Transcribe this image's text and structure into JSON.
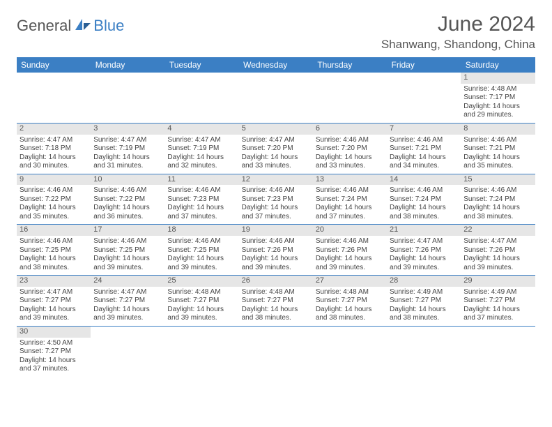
{
  "logo": {
    "part1": "General",
    "part2": "Blue"
  },
  "title": "June 2024",
  "location": "Shanwang, Shandong, China",
  "colors": {
    "header_bg": "#3b7fc4",
    "header_text": "#ffffff",
    "daynum_bg": "#e6e6e6",
    "text": "#444444",
    "title_color": "#555555"
  },
  "weekdays": [
    "Sunday",
    "Monday",
    "Tuesday",
    "Wednesday",
    "Thursday",
    "Friday",
    "Saturday"
  ],
  "weeks": [
    [
      null,
      null,
      null,
      null,
      null,
      null,
      {
        "n": "1",
        "sr": "Sunrise: 4:48 AM",
        "ss": "Sunset: 7:17 PM",
        "dl": "Daylight: 14 hours and 29 minutes."
      }
    ],
    [
      {
        "n": "2",
        "sr": "Sunrise: 4:47 AM",
        "ss": "Sunset: 7:18 PM",
        "dl": "Daylight: 14 hours and 30 minutes."
      },
      {
        "n": "3",
        "sr": "Sunrise: 4:47 AM",
        "ss": "Sunset: 7:19 PM",
        "dl": "Daylight: 14 hours and 31 minutes."
      },
      {
        "n": "4",
        "sr": "Sunrise: 4:47 AM",
        "ss": "Sunset: 7:19 PM",
        "dl": "Daylight: 14 hours and 32 minutes."
      },
      {
        "n": "5",
        "sr": "Sunrise: 4:47 AM",
        "ss": "Sunset: 7:20 PM",
        "dl": "Daylight: 14 hours and 33 minutes."
      },
      {
        "n": "6",
        "sr": "Sunrise: 4:46 AM",
        "ss": "Sunset: 7:20 PM",
        "dl": "Daylight: 14 hours and 33 minutes."
      },
      {
        "n": "7",
        "sr": "Sunrise: 4:46 AM",
        "ss": "Sunset: 7:21 PM",
        "dl": "Daylight: 14 hours and 34 minutes."
      },
      {
        "n": "8",
        "sr": "Sunrise: 4:46 AM",
        "ss": "Sunset: 7:21 PM",
        "dl": "Daylight: 14 hours and 35 minutes."
      }
    ],
    [
      {
        "n": "9",
        "sr": "Sunrise: 4:46 AM",
        "ss": "Sunset: 7:22 PM",
        "dl": "Daylight: 14 hours and 35 minutes."
      },
      {
        "n": "10",
        "sr": "Sunrise: 4:46 AM",
        "ss": "Sunset: 7:22 PM",
        "dl": "Daylight: 14 hours and 36 minutes."
      },
      {
        "n": "11",
        "sr": "Sunrise: 4:46 AM",
        "ss": "Sunset: 7:23 PM",
        "dl": "Daylight: 14 hours and 37 minutes."
      },
      {
        "n": "12",
        "sr": "Sunrise: 4:46 AM",
        "ss": "Sunset: 7:23 PM",
        "dl": "Daylight: 14 hours and 37 minutes."
      },
      {
        "n": "13",
        "sr": "Sunrise: 4:46 AM",
        "ss": "Sunset: 7:24 PM",
        "dl": "Daylight: 14 hours and 37 minutes."
      },
      {
        "n": "14",
        "sr": "Sunrise: 4:46 AM",
        "ss": "Sunset: 7:24 PM",
        "dl": "Daylight: 14 hours and 38 minutes."
      },
      {
        "n": "15",
        "sr": "Sunrise: 4:46 AM",
        "ss": "Sunset: 7:24 PM",
        "dl": "Daylight: 14 hours and 38 minutes."
      }
    ],
    [
      {
        "n": "16",
        "sr": "Sunrise: 4:46 AM",
        "ss": "Sunset: 7:25 PM",
        "dl": "Daylight: 14 hours and 38 minutes."
      },
      {
        "n": "17",
        "sr": "Sunrise: 4:46 AM",
        "ss": "Sunset: 7:25 PM",
        "dl": "Daylight: 14 hours and 39 minutes."
      },
      {
        "n": "18",
        "sr": "Sunrise: 4:46 AM",
        "ss": "Sunset: 7:25 PM",
        "dl": "Daylight: 14 hours and 39 minutes."
      },
      {
        "n": "19",
        "sr": "Sunrise: 4:46 AM",
        "ss": "Sunset: 7:26 PM",
        "dl": "Daylight: 14 hours and 39 minutes."
      },
      {
        "n": "20",
        "sr": "Sunrise: 4:46 AM",
        "ss": "Sunset: 7:26 PM",
        "dl": "Daylight: 14 hours and 39 minutes."
      },
      {
        "n": "21",
        "sr": "Sunrise: 4:47 AM",
        "ss": "Sunset: 7:26 PM",
        "dl": "Daylight: 14 hours and 39 minutes."
      },
      {
        "n": "22",
        "sr": "Sunrise: 4:47 AM",
        "ss": "Sunset: 7:26 PM",
        "dl": "Daylight: 14 hours and 39 minutes."
      }
    ],
    [
      {
        "n": "23",
        "sr": "Sunrise: 4:47 AM",
        "ss": "Sunset: 7:27 PM",
        "dl": "Daylight: 14 hours and 39 minutes."
      },
      {
        "n": "24",
        "sr": "Sunrise: 4:47 AM",
        "ss": "Sunset: 7:27 PM",
        "dl": "Daylight: 14 hours and 39 minutes."
      },
      {
        "n": "25",
        "sr": "Sunrise: 4:48 AM",
        "ss": "Sunset: 7:27 PM",
        "dl": "Daylight: 14 hours and 39 minutes."
      },
      {
        "n": "26",
        "sr": "Sunrise: 4:48 AM",
        "ss": "Sunset: 7:27 PM",
        "dl": "Daylight: 14 hours and 38 minutes."
      },
      {
        "n": "27",
        "sr": "Sunrise: 4:48 AM",
        "ss": "Sunset: 7:27 PM",
        "dl": "Daylight: 14 hours and 38 minutes."
      },
      {
        "n": "28",
        "sr": "Sunrise: 4:49 AM",
        "ss": "Sunset: 7:27 PM",
        "dl": "Daylight: 14 hours and 38 minutes."
      },
      {
        "n": "29",
        "sr": "Sunrise: 4:49 AM",
        "ss": "Sunset: 7:27 PM",
        "dl": "Daylight: 14 hours and 37 minutes."
      }
    ],
    [
      {
        "n": "30",
        "sr": "Sunrise: 4:50 AM",
        "ss": "Sunset: 7:27 PM",
        "dl": "Daylight: 14 hours and 37 minutes."
      },
      null,
      null,
      null,
      null,
      null,
      null
    ]
  ]
}
